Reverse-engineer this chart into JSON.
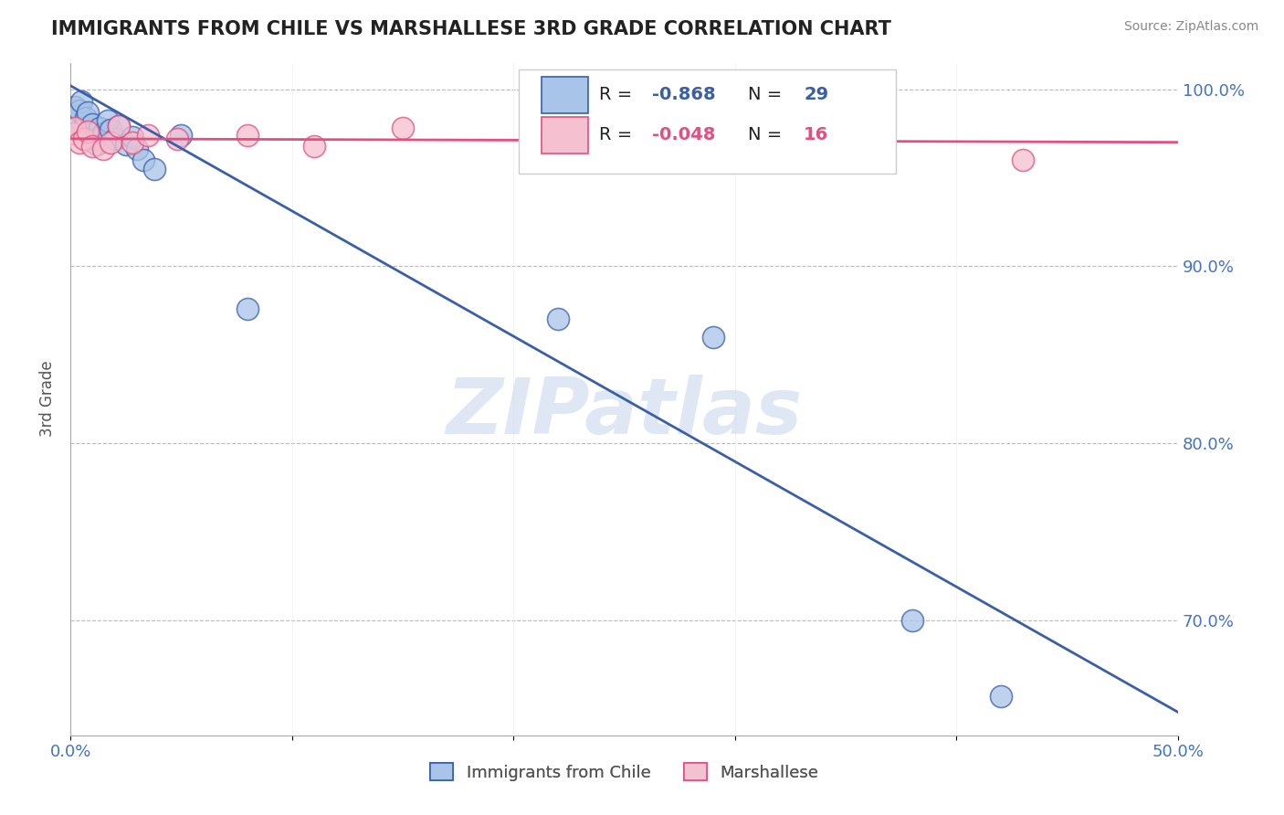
{
  "title": "IMMIGRANTS FROM CHILE VS MARSHALLESE 3RD GRADE CORRELATION CHART",
  "source": "Source: ZipAtlas.com",
  "ylabel": "3rd Grade",
  "xlim": [
    0.0,
    0.5
  ],
  "ylim": [
    0.635,
    1.015
  ],
  "blue_R": -0.868,
  "blue_N": 29,
  "pink_R": -0.048,
  "pink_N": 16,
  "watermark": "ZIPatlas",
  "blue_scatter_x": [
    0.001,
    0.002,
    0.003,
    0.004,
    0.005,
    0.006,
    0.007,
    0.008,
    0.009,
    0.01,
    0.011,
    0.012,
    0.013,
    0.015,
    0.017,
    0.018,
    0.02,
    0.022,
    0.025,
    0.028,
    0.03,
    0.033,
    0.038,
    0.05,
    0.08,
    0.22,
    0.29,
    0.38,
    0.42
  ],
  "blue_scatter_y": [
    0.982,
    0.99,
    0.985,
    0.988,
    0.993,
    0.978,
    0.984,
    0.987,
    0.975,
    0.98,
    0.972,
    0.969,
    0.978,
    0.975,
    0.982,
    0.977,
    0.972,
    0.979,
    0.969,
    0.973,
    0.966,
    0.96,
    0.955,
    0.974,
    0.876,
    0.87,
    0.86,
    0.7,
    0.657
  ],
  "pink_scatter_x": [
    0.001,
    0.002,
    0.004,
    0.006,
    0.008,
    0.01,
    0.015,
    0.018,
    0.022,
    0.028,
    0.035,
    0.048,
    0.08,
    0.11,
    0.15,
    0.43
  ],
  "pink_scatter_y": [
    0.975,
    0.978,
    0.97,
    0.972,
    0.976,
    0.968,
    0.966,
    0.97,
    0.979,
    0.97,
    0.974,
    0.972,
    0.974,
    0.968,
    0.978,
    0.96
  ],
  "blue_line_x": [
    0.0,
    0.5
  ],
  "blue_line_y": [
    1.002,
    0.648
  ],
  "pink_line_y": [
    0.972,
    0.97
  ],
  "blue_color": "#3A5FA8",
  "blue_fill": "#A8C4E8",
  "pink_color": "#E05080",
  "pink_fill": "#F5C0D0",
  "grid_color": "#CCCCCC",
  "dashed_color": "#BBBBBB",
  "background_color": "#FFFFFF",
  "title_color": "#222222",
  "source_color": "#888888",
  "tick_color": "#4472C4"
}
